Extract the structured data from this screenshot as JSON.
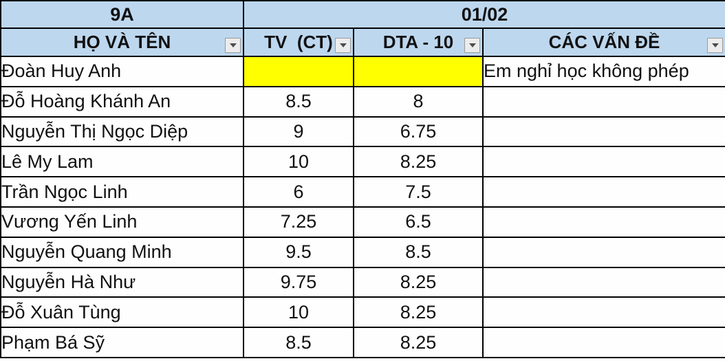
{
  "table": {
    "class_label": "9A",
    "date_label": "01/02",
    "columns": [
      {
        "label": "HỌ VÀ TÊN"
      },
      {
        "label": "TV  (CT)"
      },
      {
        "label": "DTA - 10"
      },
      {
        "label": "CÁC VẤN ĐỀ"
      }
    ],
    "rows": [
      {
        "name": "Đoàn Huy Anh",
        "tv": "",
        "dta": "",
        "note": "Em nghỉ học không phép",
        "highlight": true
      },
      {
        "name": "Đỗ Hoàng Khánh An",
        "tv": "8.5",
        "dta": "8",
        "note": "",
        "highlight": false
      },
      {
        "name": "Nguyễn Thị Ngọc Diệp",
        "tv": "9",
        "dta": "6.75",
        "note": "",
        "highlight": false
      },
      {
        "name": "Lê My Lam",
        "tv": "10",
        "dta": "8.25",
        "note": "",
        "highlight": false
      },
      {
        "name": "Trần Ngọc Linh",
        "tv": "6",
        "dta": "7.5",
        "note": "",
        "highlight": false
      },
      {
        "name": "Vương Yến Linh",
        "tv": "7.25",
        "dta": "6.5",
        "note": "",
        "highlight": false
      },
      {
        "name": "Nguyễn Quang Minh",
        "tv": "9.5",
        "dta": "8.5",
        "note": "",
        "highlight": false
      },
      {
        "name": "Nguyễn Hà Như",
        "tv": "9.75",
        "dta": "8.25",
        "note": "",
        "highlight": false
      },
      {
        "name": "Đỗ Xuân Tùng",
        "tv": "10",
        "dta": "8.25",
        "note": "",
        "highlight": false
      },
      {
        "name": "Phạm Bá Sỹ",
        "tv": "8.5",
        "dta": "8.25",
        "note": "",
        "highlight": false
      }
    ],
    "colors": {
      "header_bg": "#BDD7EE",
      "highlight_bg": "#FFFF00",
      "border": "#000000"
    }
  }
}
